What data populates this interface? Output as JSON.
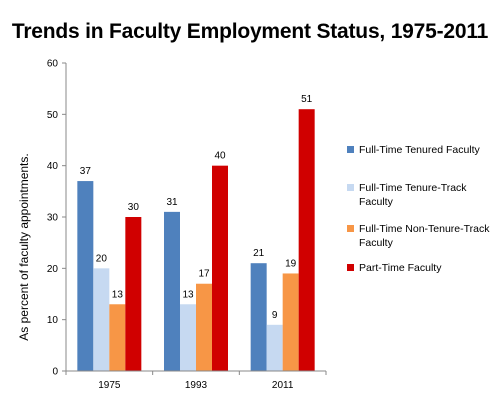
{
  "chart_data": {
    "type": "bar",
    "title": "Trends in Faculty Employment Status, 1975-2011",
    "xlabel": "",
    "ylabel": "As percent of faculty appointments.",
    "ylim": [
      0,
      60
    ],
    "yticks": [
      0,
      10,
      20,
      30,
      40,
      50,
      60
    ],
    "grid": false,
    "legend_position": "right",
    "categories": [
      "1975",
      "1993",
      "2011"
    ],
    "series": [
      {
        "name": "Full-Time Tenured Faculty",
        "values": [
          37,
          31,
          21
        ],
        "color": "#4f81bd"
      },
      {
        "name": "Full-Time Tenure-Track Faculty",
        "values": [
          20,
          13,
          9
        ],
        "color": "#c6d9f1"
      },
      {
        "name": "Full-Time Non-Tenure-Track Faculty",
        "values": [
          13,
          17,
          19
        ],
        "color": "#f79646"
      },
      {
        "name": "Part-Time Faculty",
        "values": [
          30,
          40,
          51
        ],
        "color": "#d00000"
      }
    ],
    "legend_lines": [
      [
        "Full-Time Tenured Faculty"
      ],
      [
        "Full-Time Tenure-Track",
        "Faculty"
      ],
      [
        "Full-Time Non-Tenure-Track",
        "Faculty"
      ],
      [
        "Part-Time Faculty"
      ]
    ]
  }
}
